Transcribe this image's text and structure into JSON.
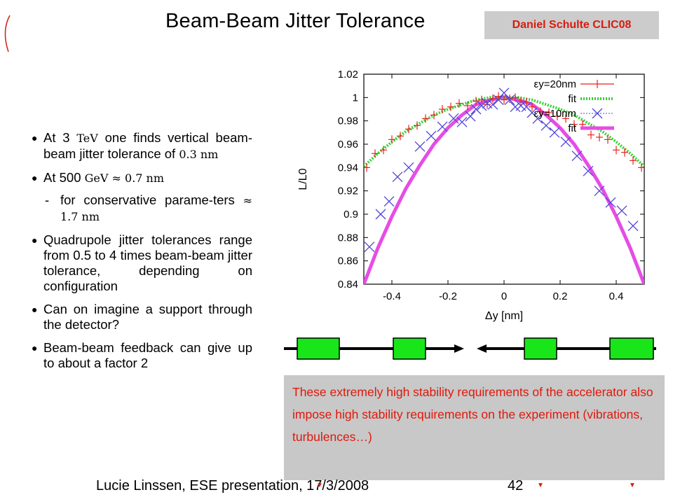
{
  "slide": {
    "title": "Beam-Beam Jitter Tolerance",
    "author_tag": "Daniel Schulte CLIC08"
  },
  "bullets": {
    "b1_pre": "At 3",
    "b1_math": "TeV",
    "b1_mid": "one finds vertical beam-beam jitter tolerance of",
    "b1_val": "0.3 nm",
    "b2_pre": "At 500",
    "b2_math": "GeV ≈ 0.7 nm",
    "b2_sub_pre": "for conservative parame-ters",
    "b2_sub_math": "≈ 1.7 nm",
    "b3": "Quadrupole jitter tolerances range from 0.5 to 4 times beam-beam jitter tolerance, depending on configuration",
    "b4": "Can on imagine a support through the detector?",
    "b5": "Beam-beam feedback can give up to about a factor 2"
  },
  "note": "These extremely high stability requirements of the accelerator also impose high stability requirements on the experiment (vibrations, turbulences…)",
  "footer": {
    "text": "Lucie Linssen, ESE presentation, 17/3/2008",
    "page": "42"
  },
  "colors": {
    "series20": "#e8211c",
    "fit20": "#2dd32d",
    "series10": "#5046d8",
    "fit10": "#e64ce6",
    "magnet": "#19e619",
    "accent_red": "#e0180a"
  },
  "chart_data": {
    "type": "scatter",
    "xlabel": "Δy [nm]",
    "ylabel": "L/L0",
    "xlim": [
      -0.5,
      0.5
    ],
    "ylim": [
      0.84,
      1.02
    ],
    "xticks": [
      "-0.4",
      "-0.2",
      "0",
      "0.2",
      "0.4"
    ],
    "xtick_values": [
      -0.4,
      -0.2,
      0,
      0.2,
      0.4
    ],
    "yticks": [
      "0.84",
      "0.86",
      "0.88",
      "0.9",
      "0.92",
      "0.94",
      "0.96",
      "0.98",
      "1",
      "1.02"
    ],
    "ytick_values": [
      0.84,
      0.86,
      0.88,
      0.9,
      0.92,
      0.94,
      0.96,
      0.98,
      1.0,
      1.02
    ],
    "legend": [
      "εy=20nm",
      "fit",
      "εy=10nm",
      "fit"
    ],
    "legend_position": "top-right",
    "series": [
      {
        "name": "εy=20nm",
        "x": [
          -0.49,
          -0.46,
          -0.43,
          -0.4,
          -0.37,
          -0.34,
          -0.31,
          -0.28,
          -0.25,
          -0.22,
          -0.19,
          -0.16,
          -0.13,
          -0.1,
          -0.08,
          -0.06,
          -0.04,
          -0.02,
          0,
          0.02,
          0.04,
          0.06,
          0.08,
          0.1,
          0.13,
          0.16,
          0.19,
          0.22,
          0.25,
          0.28,
          0.31,
          0.34,
          0.37,
          0.4,
          0.43,
          0.46,
          0.49
        ],
        "y": [
          0.94,
          0.952,
          0.955,
          0.964,
          0.967,
          0.973,
          0.976,
          0.982,
          0.985,
          0.99,
          0.992,
          0.995,
          0.993,
          0.997,
          0.998,
          0.994,
          0.999,
          1.001,
          0.998,
          0.999,
          1.0,
          0.997,
          0.996,
          0.992,
          0.988,
          0.987,
          0.984,
          0.982,
          0.977,
          0.977,
          0.968,
          0.966,
          0.964,
          0.955,
          0.953,
          0.946,
          0.94
        ]
      },
      {
        "name": "fit",
        "x": [
          -0.5,
          -0.45,
          -0.4,
          -0.35,
          -0.3,
          -0.25,
          -0.2,
          -0.15,
          -0.1,
          -0.05,
          0,
          0.05,
          0.1,
          0.15,
          0.2,
          0.25,
          0.3,
          0.35,
          0.4,
          0.45,
          0.5
        ],
        "y": [
          0.941,
          0.952,
          0.962,
          0.971,
          0.978,
          0.985,
          0.99,
          0.994,
          0.998,
          1.0,
          1.0,
          1.0,
          0.998,
          0.994,
          0.99,
          0.985,
          0.978,
          0.971,
          0.962,
          0.952,
          0.941
        ]
      },
      {
        "name": "εy=10nm",
        "x": [
          -0.48,
          -0.44,
          -0.41,
          -0.38,
          -0.34,
          -0.3,
          -0.26,
          -0.22,
          -0.18,
          -0.15,
          -0.12,
          -0.1,
          -0.08,
          -0.06,
          -0.04,
          -0.02,
          0,
          0.02,
          0.04,
          0.06,
          0.08,
          0.1,
          0.12,
          0.15,
          0.18,
          0.22,
          0.26,
          0.3,
          0.34,
          0.38,
          0.42,
          0.46
        ],
        "y": [
          0.872,
          0.9,
          0.911,
          0.932,
          0.94,
          0.958,
          0.967,
          0.975,
          0.982,
          0.979,
          0.984,
          0.99,
          0.993,
          0.995,
          0.994,
          0.998,
          1.004,
          0.998,
          0.992,
          0.993,
          0.992,
          0.987,
          0.982,
          0.976,
          0.97,
          0.962,
          0.95,
          0.937,
          0.92,
          0.91,
          0.903,
          0.89
        ]
      },
      {
        "name": "fit",
        "x": [
          -0.5,
          -0.45,
          -0.4,
          -0.35,
          -0.3,
          -0.25,
          -0.2,
          -0.15,
          -0.1,
          -0.05,
          0,
          0.05,
          0.1,
          0.15,
          0.2,
          0.25,
          0.3,
          0.35,
          0.4,
          0.45,
          0.5
        ],
        "y": [
          0.84,
          0.871,
          0.898,
          0.922,
          0.942,
          0.96,
          0.974,
          0.985,
          0.994,
          0.998,
          1.0,
          0.998,
          0.994,
          0.985,
          0.974,
          0.96,
          0.942,
          0.922,
          0.898,
          0.871,
          0.84
        ]
      }
    ]
  }
}
